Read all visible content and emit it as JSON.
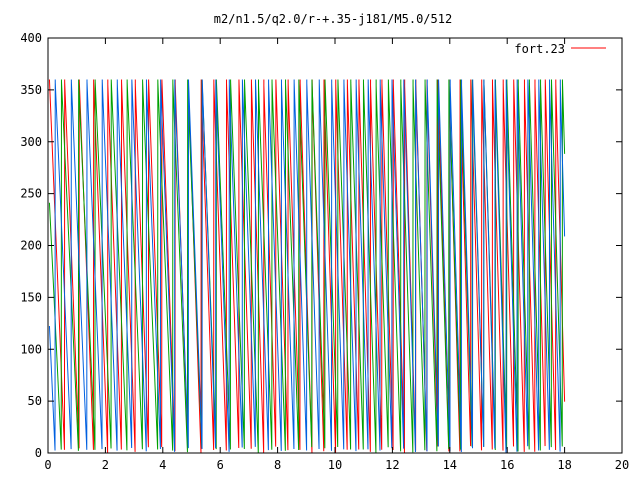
{
  "chart_data": {
    "type": "line",
    "title": "m2/n1.5/q2.0/r-+.35-j181/M5.0/512",
    "xlabel": "",
    "ylabel": "",
    "xlim": [
      0,
      20
    ],
    "ylim": [
      0,
      400
    ],
    "x_ticks": [
      0,
      2,
      4,
      6,
      8,
      10,
      12,
      14,
      16,
      18,
      20
    ],
    "y_ticks": [
      0,
      50,
      100,
      150,
      200,
      250,
      300,
      350,
      400
    ],
    "grid": false,
    "legend_position": "top-right",
    "legend": [
      {
        "label": "fort.23",
        "color": "#ff0000"
      }
    ],
    "series": [
      {
        "name": "fort.23",
        "color": "#ff0000",
        "description_values": "phase angle wrapping 0-360",
        "x_start": 0.05,
        "x_end": 18.0,
        "period_start": 0.55,
        "period_end": 0.36,
        "phase": 0.0
      },
      {
        "color": "#00a000",
        "x_start": 0.05,
        "x_end": 18.0,
        "period_start": 0.65,
        "period_end": 0.38,
        "phase": 0.33
      },
      {
        "color": "#0060e0",
        "x_start": 0.05,
        "x_end": 18.0,
        "period_start": 0.6,
        "period_end": 0.37,
        "phase": 0.66
      }
    ]
  }
}
